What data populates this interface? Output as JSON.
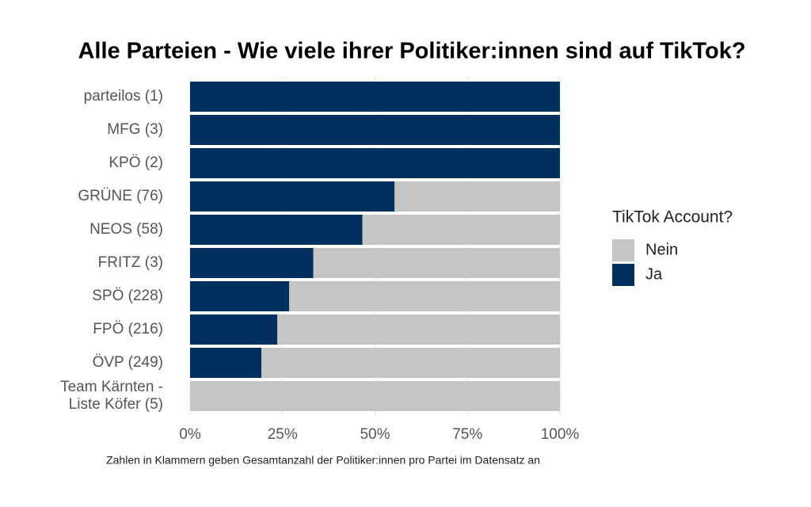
{
  "chart_data": {
    "type": "bar",
    "orientation": "horizontal",
    "stacked": true,
    "title": "Alle Parteien - Wie viele ihrer Politiker:innen sind auf TikTok?",
    "caption": "Zahlen in Klammern geben Gesamtanzahl der Politiker:innen pro Partei im Datensatz an",
    "categories": [
      "parteilos (1)",
      "MFG (3)",
      "KPÖ (2)",
      "GRÜNE (76)",
      "NEOS (58)",
      "FRITZ (3)",
      "SPÖ (228)",
      "FPÖ (216)",
      "ÖVP (249)",
      "Team Kärnten - Liste Köfer (5)"
    ],
    "legend_title": "TikTok Account?",
    "series": [
      {
        "name": "Nein",
        "color": "#c4c5c4",
        "values": [
          0,
          0,
          0,
          44.7,
          53.4,
          66.7,
          73.2,
          76.4,
          80.7,
          100
        ]
      },
      {
        "name": "Ja",
        "color": "#00305e",
        "values": [
          100,
          100,
          100,
          55.3,
          46.6,
          33.3,
          26.8,
          23.6,
          19.3,
          0
        ]
      }
    ],
    "xlim": [
      0,
      100
    ],
    "xticks": [
      {
        "value": 0,
        "label": "0%"
      },
      {
        "value": 25,
        "label": "25%"
      },
      {
        "value": 50,
        "label": "50%"
      },
      {
        "value": 75,
        "label": "75%"
      },
      {
        "value": 100,
        "label": "100%"
      }
    ],
    "grid": true,
    "legend": "right"
  }
}
